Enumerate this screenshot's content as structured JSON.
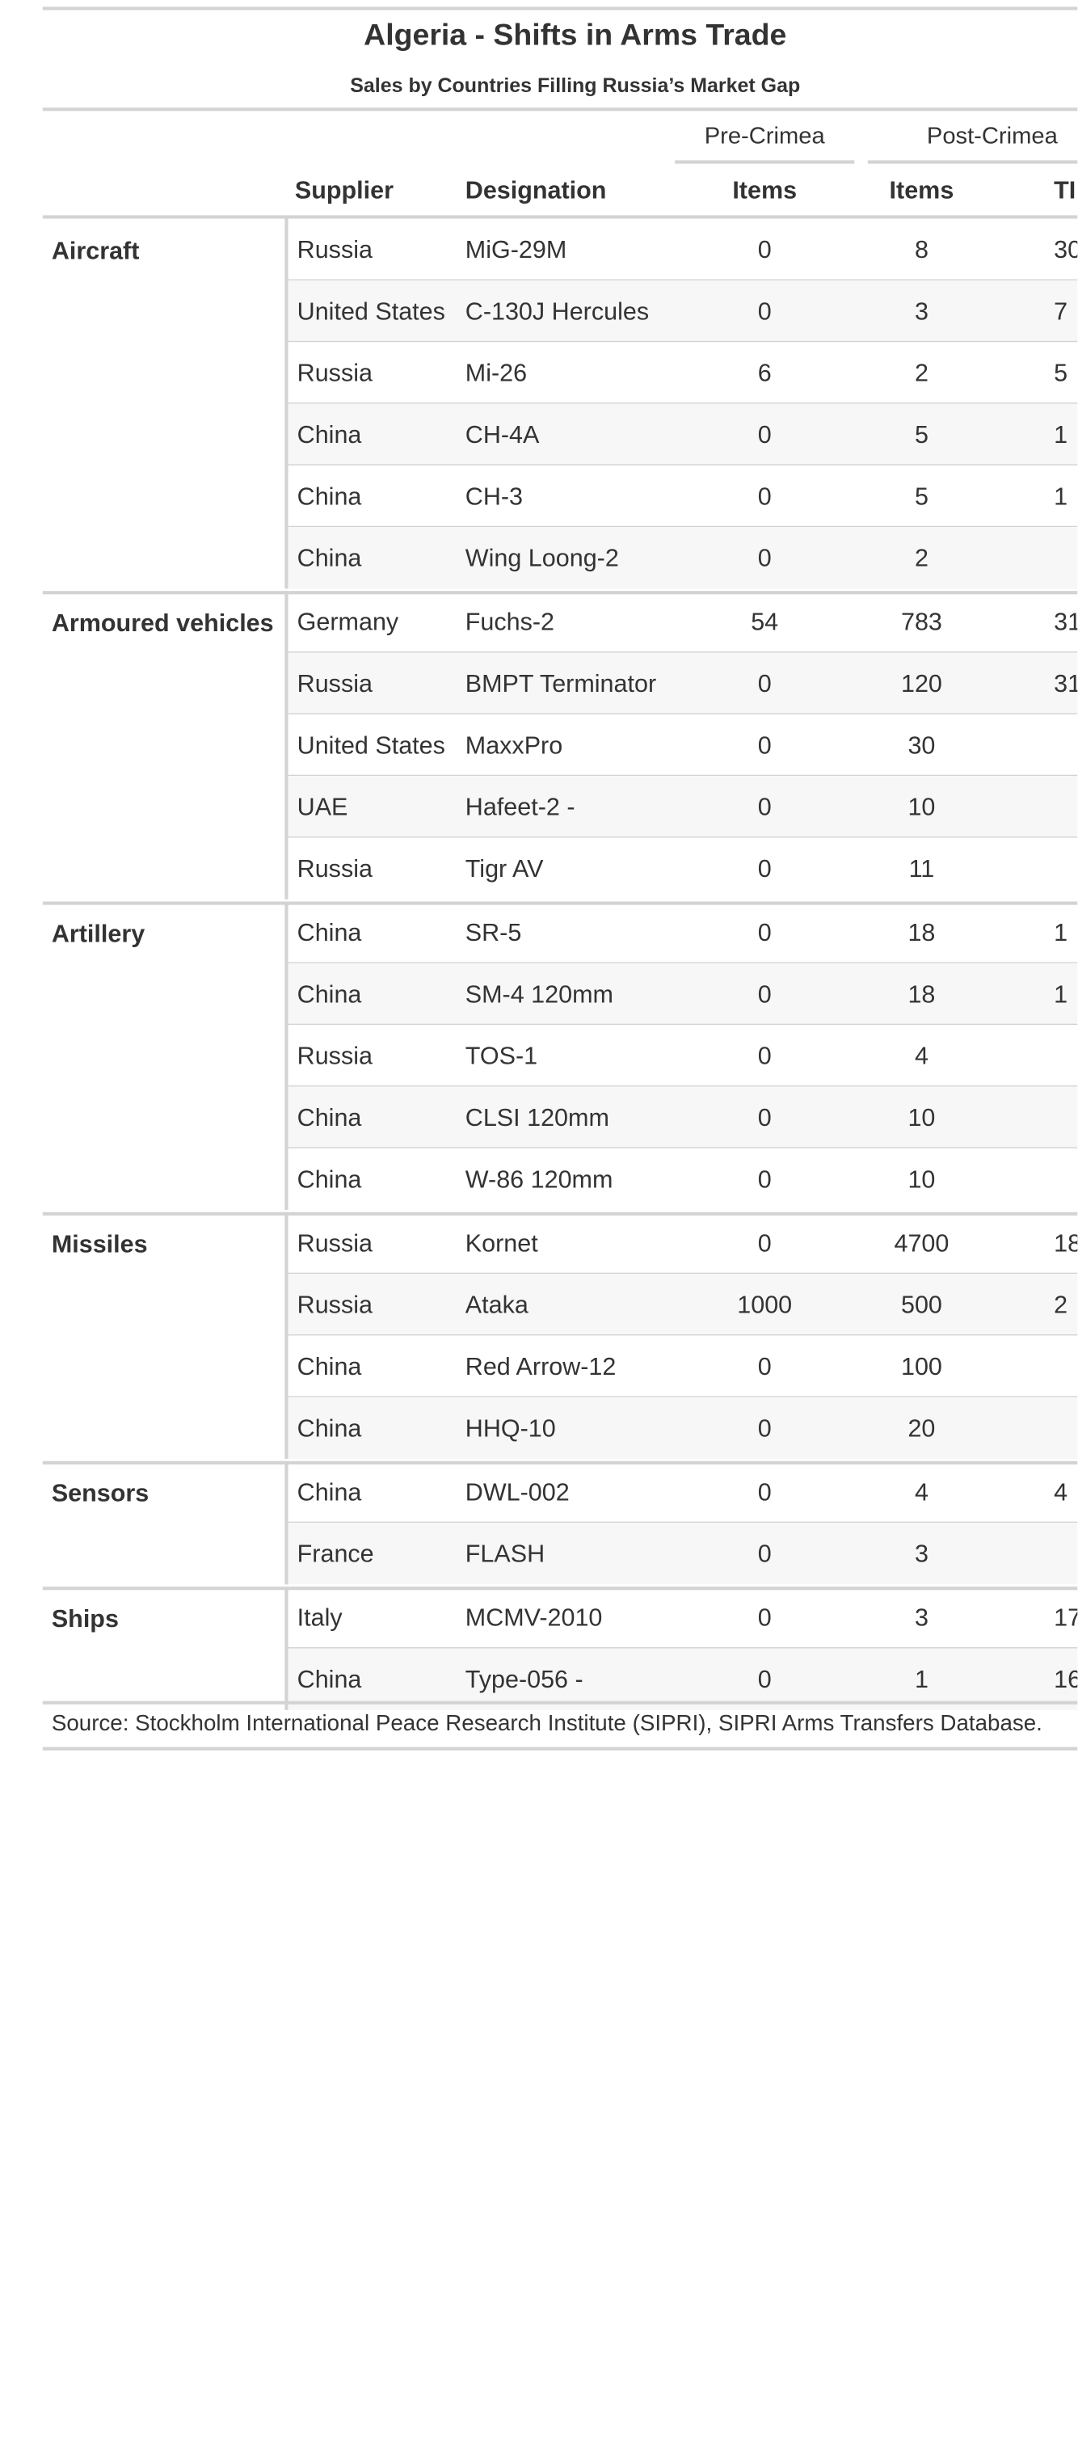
{
  "table": {
    "title": "Algeria - Shifts in Arms Trade",
    "subtitle": "Sales by Countries Filling Russia’s Market Gap",
    "spanners": {
      "pre": "Pre-Crimea",
      "post": "Post-Crimea"
    },
    "columns": {
      "supplier": "Supplier",
      "designation": "Designation",
      "pre_items": "Items",
      "post_items": "Items",
      "tiv": "TI"
    },
    "groups": [
      {
        "label": "Aircraft",
        "rows": [
          {
            "supplier": "Russia",
            "designation": "MiG-29M",
            "pre": "0",
            "post": "8",
            "tiv": "30"
          },
          {
            "supplier": "United States",
            "designation": "C-130J Hercules",
            "pre": "0",
            "post": "3",
            "tiv": "7"
          },
          {
            "supplier": "Russia",
            "designation": "Mi-26",
            "pre": "6",
            "post": "2",
            "tiv": "5"
          },
          {
            "supplier": "China",
            "designation": "CH-4A",
            "pre": "0",
            "post": "5",
            "tiv": "1"
          },
          {
            "supplier": "China",
            "designation": "CH-3",
            "pre": "0",
            "post": "5",
            "tiv": "1"
          },
          {
            "supplier": "China",
            "designation": "Wing Loong-2",
            "pre": "0",
            "post": "2",
            "tiv": ""
          }
        ]
      },
      {
        "label": "Armoured vehicles",
        "rows": [
          {
            "supplier": "Germany",
            "designation": "Fuchs-2",
            "pre": "54",
            "post": "783",
            "tiv": "31"
          },
          {
            "supplier": "Russia",
            "designation": "BMPT Terminator",
            "pre": "0",
            "post": "120",
            "tiv": "31"
          },
          {
            "supplier": "United States",
            "designation": "MaxxPro",
            "pre": "0",
            "post": "30",
            "tiv": ""
          },
          {
            "supplier": "UAE",
            "designation": "Hafeet-2 -",
            "pre": "0",
            "post": "10",
            "tiv": ""
          },
          {
            "supplier": "Russia",
            "designation": "Tigr AV",
            "pre": "0",
            "post": "11",
            "tiv": ""
          }
        ]
      },
      {
        "label": "Artillery",
        "rows": [
          {
            "supplier": "China",
            "designation": "SR-5",
            "pre": "0",
            "post": "18",
            "tiv": "1"
          },
          {
            "supplier": "China",
            "designation": "SM-4 120mm",
            "pre": "0",
            "post": "18",
            "tiv": "1"
          },
          {
            "supplier": "Russia",
            "designation": "TOS-1",
            "pre": "0",
            "post": "4",
            "tiv": ""
          },
          {
            "supplier": "China",
            "designation": "CLSI 120mm",
            "pre": "0",
            "post": "10",
            "tiv": ""
          },
          {
            "supplier": "China",
            "designation": "W-86 120mm",
            "pre": "0",
            "post": "10",
            "tiv": ""
          }
        ]
      },
      {
        "label": "Missiles",
        "rows": [
          {
            "supplier": "Russia",
            "designation": "Kornet",
            "pre": "0",
            "post": "4700",
            "tiv": "18"
          },
          {
            "supplier": "Russia",
            "designation": "Ataka",
            "pre": "1000",
            "post": "500",
            "tiv": "2"
          },
          {
            "supplier": "China",
            "designation": "Red Arrow-12",
            "pre": "0",
            "post": "100",
            "tiv": ""
          },
          {
            "supplier": "China",
            "designation": "HHQ-10",
            "pre": "0",
            "post": "20",
            "tiv": ""
          }
        ]
      },
      {
        "label": "Sensors",
        "rows": [
          {
            "supplier": "China",
            "designation": "DWL-002",
            "pre": "0",
            "post": "4",
            "tiv": "4"
          },
          {
            "supplier": "France",
            "designation": "FLASH",
            "pre": "0",
            "post": "3",
            "tiv": ""
          }
        ]
      },
      {
        "label": "Ships",
        "rows": [
          {
            "supplier": "Italy",
            "designation": "MCMV-2010",
            "pre": "0",
            "post": "3",
            "tiv": "17"
          },
          {
            "supplier": "China",
            "designation": "Type-056 -",
            "pre": "0",
            "post": "1",
            "tiv": "16"
          }
        ]
      }
    ],
    "source": "Source: Stockholm International Peace Research Institute (SIPRI), SIPRI Arms Transfers Database."
  }
}
